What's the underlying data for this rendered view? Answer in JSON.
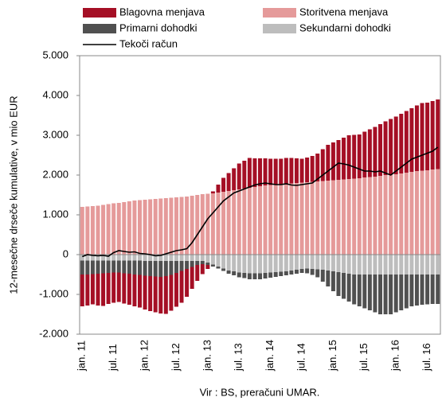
{
  "chart_data": {
    "type": "bar",
    "stacked": true,
    "y_label": "12-mesečne drseče kumulative, v mio EUR",
    "source": "Vir : BS, preračuni  UMAR.",
    "categories": [
      "jan. 11",
      null,
      null,
      null,
      null,
      null,
      "jul. 11",
      null,
      null,
      null,
      null,
      null,
      "jan. 12",
      null,
      null,
      null,
      null,
      null,
      "jul. 12",
      null,
      null,
      null,
      null,
      null,
      "jan. 13",
      null,
      null,
      null,
      null,
      null,
      "jul. 13",
      null,
      null,
      null,
      null,
      null,
      "jan. 14",
      null,
      null,
      null,
      null,
      null,
      "jul. 14",
      null,
      null,
      null,
      null,
      null,
      "jan. 15",
      null,
      null,
      null,
      null,
      null,
      "jul. 15",
      null,
      null,
      null,
      null,
      null,
      "jan. 16",
      null,
      null,
      null,
      null,
      null,
      "jul. 16",
      null,
      null
    ],
    "ylim": [
      -2000,
      5000
    ],
    "yticks": [
      {
        "value": -2000,
        "label": "-2.000"
      },
      {
        "value": -1000,
        "label": "-1.000"
      },
      0,
      {
        "value": 1000,
        "label": "1.000"
      },
      {
        "value": 2000,
        "label": "2.000"
      },
      {
        "value": 3000,
        "label": "3.000"
      },
      {
        "value": 4000,
        "label": "4.000"
      },
      {
        "value": 5000,
        "label": "5.000"
      }
    ],
    "series": [
      {
        "name": "Blagovna menjava",
        "color": "#a50f25",
        "type": "bar",
        "values": [
          -800,
          -780,
          -760,
          -800,
          -820,
          -780,
          -760,
          -740,
          -760,
          -780,
          -800,
          -820,
          -850,
          -880,
          -900,
          -920,
          -950,
          -900,
          -850,
          -800,
          -700,
          -550,
          -400,
          -250,
          -100,
          50,
          200,
          350,
          450,
          550,
          650,
          700,
          750,
          720,
          700,
          680,
          660,
          650,
          640,
          650,
          640,
          620,
          600,
          620,
          650,
          700,
          800,
          900,
          950,
          1000,
          1050,
          1100,
          1100,
          1100,
          1150,
          1200,
          1250,
          1300,
          1350,
          1400,
          1450,
          1500,
          1550,
          1600,
          1650,
          1700,
          1700,
          1720,
          1750
        ]
      },
      {
        "name": "Storitvena menjava",
        "color": "#e59a9a",
        "type": "bar",
        "values": [
          1200,
          1210,
          1220,
          1230,
          1250,
          1270,
          1290,
          1300,
          1320,
          1340,
          1360,
          1370,
          1380,
          1390,
          1400,
          1410,
          1420,
          1430,
          1440,
          1450,
          1460,
          1480,
          1500,
          1520,
          1530,
          1540,
          1560,
          1580,
          1600,
          1620,
          1640,
          1660,
          1680,
          1700,
          1720,
          1740,
          1750,
          1760,
          1770,
          1780,
          1790,
          1800,
          1810,
          1820,
          1830,
          1840,
          1850,
          1860,
          1870,
          1880,
          1890,
          1900,
          1910,
          1920,
          1940,
          1950,
          1960,
          1980,
          2000,
          2010,
          2020,
          2040,
          2060,
          2080,
          2100,
          2110,
          2120,
          2140,
          2150
        ]
      },
      {
        "name": "Primarni dohodki",
        "color": "#505050",
        "type": "bar",
        "values": [
          -350,
          -350,
          -340,
          -330,
          -320,
          -310,
          -300,
          -300,
          -320,
          -330,
          -350,
          -360,
          -370,
          -380,
          -390,
          -400,
          -380,
          -350,
          -300,
          -250,
          -200,
          -150,
          -100,
          -80,
          -60,
          -50,
          -50,
          -60,
          -80,
          -100,
          -120,
          -130,
          -150,
          -150,
          -150,
          -140,
          -130,
          -120,
          -110,
          -100,
          -100,
          -100,
          -100,
          -120,
          -150,
          -200,
          -300,
          -400,
          -500,
          -600,
          -650,
          -700,
          -750,
          -800,
          -850,
          -900,
          -950,
          -1000,
          -1000,
          -1000,
          -950,
          -900,
          -850,
          -800,
          -780,
          -760,
          -750,
          -740,
          -740
        ]
      },
      {
        "name": "Sekundarni dohodki",
        "color": "#bdbdbd",
        "type": "bar",
        "values": [
          -150,
          -150,
          -150,
          -150,
          -150,
          -150,
          -150,
          -150,
          -150,
          -150,
          -150,
          -150,
          -160,
          -160,
          -160,
          -160,
          -160,
          -160,
          -160,
          -160,
          -160,
          -160,
          -160,
          -160,
          -200,
          -250,
          -300,
          -350,
          -400,
          -420,
          -450,
          -460,
          -470,
          -470,
          -470,
          -460,
          -450,
          -440,
          -430,
          -420,
          -400,
          -380,
          -360,
          -350,
          -360,
          -370,
          -380,
          -400,
          -420,
          -440,
          -460,
          -480,
          -500,
          -500,
          -500,
          -500,
          -500,
          -500,
          -500,
          -500,
          -500,
          -500,
          -500,
          -500,
          -500,
          -500,
          -500,
          -500,
          -500
        ]
      },
      {
        "name": "Tekoči račun",
        "color": "#000000",
        "type": "line",
        "values": [
          -50,
          0,
          -20,
          -30,
          -20,
          -40,
          50,
          100,
          80,
          60,
          70,
          30,
          20,
          0,
          -30,
          -20,
          20,
          60,
          100,
          120,
          150,
          300,
          500,
          700,
          900,
          1050,
          1200,
          1350,
          1450,
          1550,
          1600,
          1650,
          1700,
          1750,
          1780,
          1800,
          1780,
          1760,
          1760,
          1780,
          1750,
          1740,
          1760,
          1780,
          1800,
          1900,
          2000,
          2100,
          2200,
          2300,
          2280,
          2250,
          2200,
          2150,
          2100,
          2100,
          2080,
          2100,
          2050,
          2000,
          2100,
          2200,
          2300,
          2400,
          2450,
          2500,
          2550,
          2600,
          2700
        ]
      }
    ]
  }
}
